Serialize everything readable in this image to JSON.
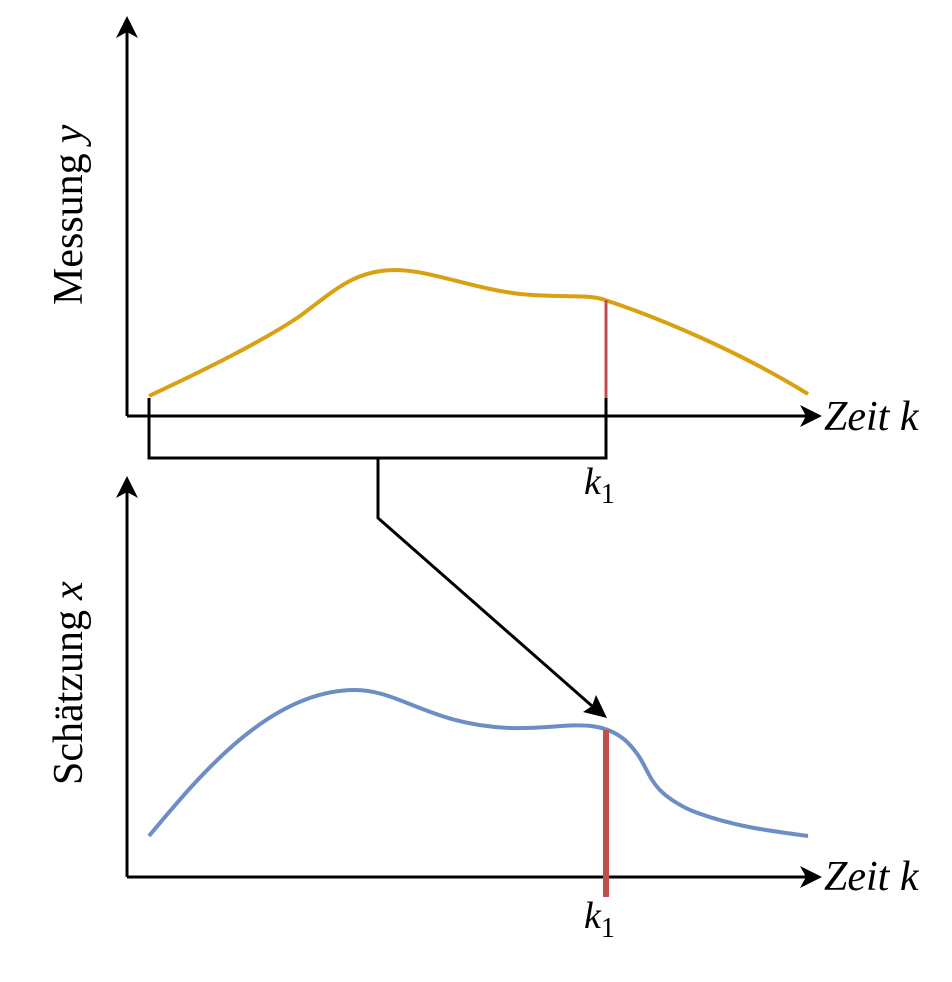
{
  "top_panel": {
    "y_label_word": "Messung",
    "y_label_var": "y",
    "x_label": "Zeit k",
    "marker_label_base": "k",
    "marker_label_sub": "1",
    "curve_color": "#D9A011",
    "marker_color": "#C0504D"
  },
  "bottom_panel": {
    "y_label_word": "Schätzung",
    "y_label_var": "x",
    "x_label": "Zeit k",
    "marker_label_base": "k",
    "marker_label_sub": "1",
    "curve_color": "#6C8EC4",
    "marker_color": "#C0504D"
  }
}
